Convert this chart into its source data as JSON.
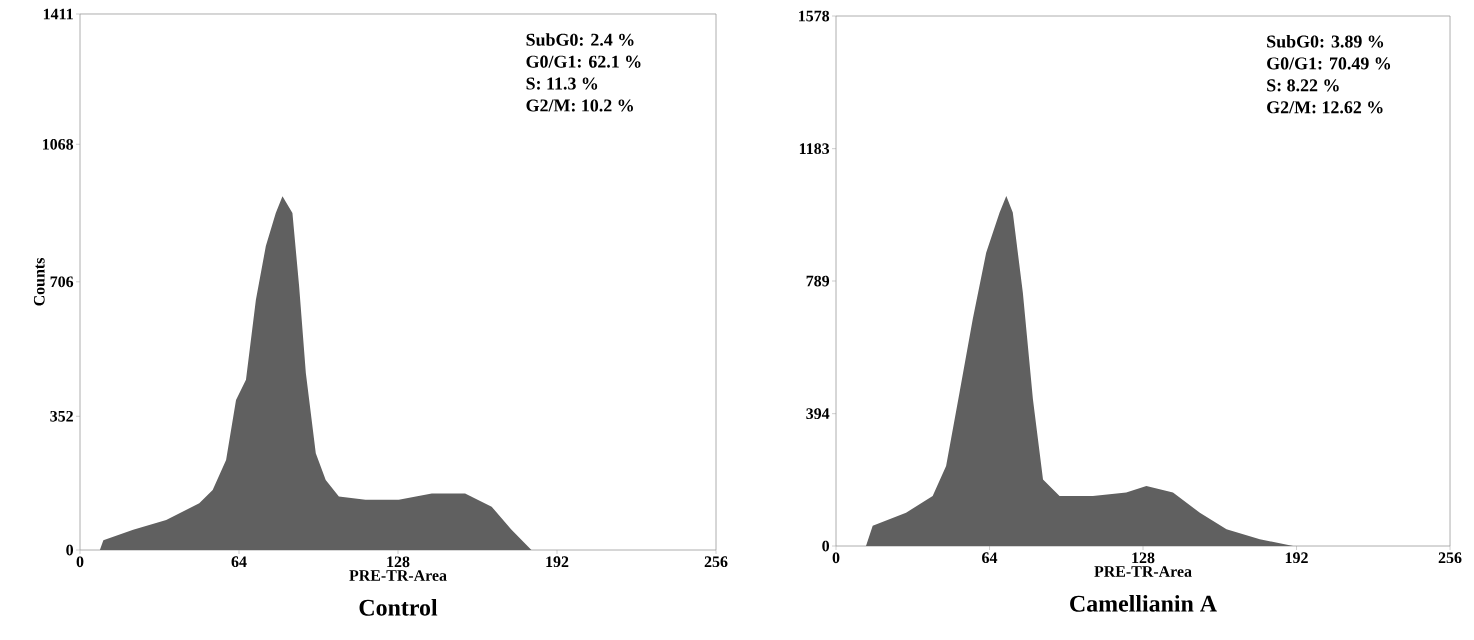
{
  "chart_data": [
    {
      "type": "area",
      "title": "Control",
      "xlabel": "PRE-TR-Area",
      "ylabel": "Counts",
      "color": "#606060",
      "xlim": [
        0,
        256
      ],
      "ylim": [
        0,
        1411
      ],
      "xticks": [
        0,
        64,
        128,
        192,
        256
      ],
      "yticks": [
        0,
        352,
        706,
        1068,
        1411
      ],
      "annotations": [
        "SubG0: 2.4 %",
        "G0/G1: 62.1 %",
        "S: 11.3 %",
        "G2/M: 10.2 %"
      ],
      "x": [
        8,
        9.4,
        21.4,
        34.7,
        48,
        53.4,
        58.8,
        62.8,
        66.8,
        70.8,
        74.8,
        78.8,
        81.5,
        85.5,
        88.2,
        90.9,
        94.9,
        98.9,
        104.2,
        114.9,
        128.3,
        141.6,
        155,
        165.7,
        173.7,
        181.7
      ],
      "values": [
        0,
        26,
        53,
        79,
        123,
        158,
        237,
        395,
        448,
        659,
        800,
        887,
        931,
        887,
        694,
        466,
        255,
        184,
        141,
        132,
        132,
        149,
        149,
        114,
        53,
        0
      ]
    },
    {
      "type": "area",
      "title": "Camellianin A",
      "xlabel": "PRE-TR-Area",
      "color": "#606060",
      "xlim": [
        0,
        256
      ],
      "ylim": [
        0,
        1578
      ],
      "xticks": [
        0,
        64,
        128,
        192,
        256
      ],
      "yticks": [
        0,
        394,
        789,
        1183,
        1578
      ],
      "annotations": [
        "SubG0: 3.89 %",
        "G0/G1: 70.49 %",
        "S: 8.22 %",
        "G2/M: 12.62 %"
      ],
      "x": [
        12.5,
        15.3,
        29.2,
        40.3,
        45.9,
        51.5,
        57,
        62.6,
        68.2,
        71,
        73.7,
        77.9,
        82.1,
        86.3,
        93.2,
        107.1,
        121,
        129.4,
        140.5,
        151.7,
        162.8,
        176.7,
        190.6
      ],
      "values": [
        0,
        60,
        99,
        149,
        238,
        457,
        675,
        873,
        993,
        1042,
        993,
        754,
        437,
        198,
        149,
        149,
        159,
        179,
        159,
        99,
        50,
        20,
        0
      ]
    }
  ]
}
